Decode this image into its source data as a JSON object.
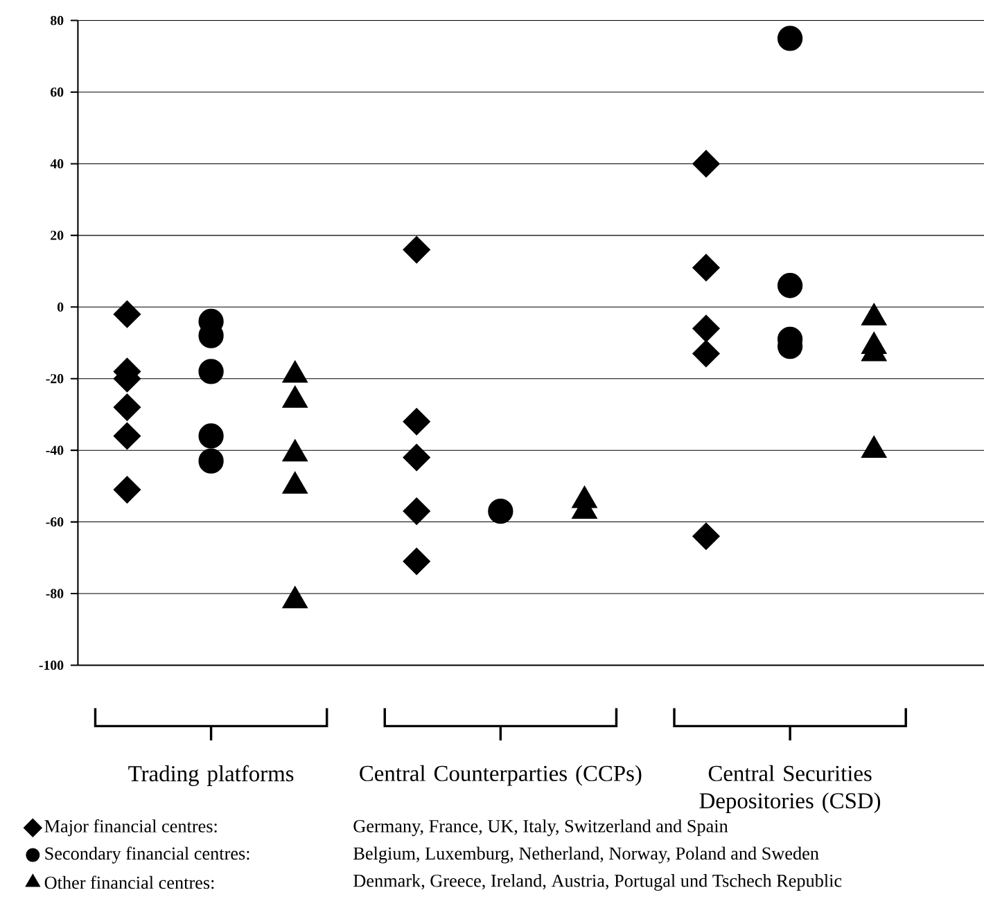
{
  "chart_data": {
    "type": "scatter",
    "categories": [
      "Trading platforms",
      "Central Counterparties (CCPs)",
      "Central Securities Depositories (CSD)"
    ],
    "series": [
      {
        "name": "Major financial centres:",
        "color": "#000000",
        "marker": "diamond",
        "x": [
          "Trading platforms",
          "Trading platforms",
          "Trading platforms",
          "Trading platforms",
          "Trading platforms",
          "Trading platforms",
          "Central Counterparties (CCPs)",
          "Central Counterparties (CCPs)",
          "Central Counterparties (CCPs)",
          "Central Counterparties (CCPs)",
          "Central Counterparties (CCPs)",
          "Central Securities Depositories (CSD)",
          "Central Securities Depositories (CSD)",
          "Central Securities Depositories (CSD)",
          "Central Securities Depositories (CSD)",
          "Central Securities Depositories (CSD)"
        ],
        "values": [
          -2,
          -18,
          -20,
          -28,
          -36,
          -51,
          16,
          -32,
          -42,
          -57,
          -71,
          40,
          11,
          -6,
          -13,
          -64
        ]
      },
      {
        "name": "Secondary financial centres:",
        "color": "#000000",
        "marker": "circle",
        "x": [
          "Trading platforms",
          "Trading platforms",
          "Trading platforms",
          "Trading platforms",
          "Trading platforms",
          "Central Counterparties (CCPs)",
          "Central Securities Depositories (CSD)",
          "Central Securities Depositories (CSD)",
          "Central Securities Depositories (CSD)",
          "Central Securities Depositories (CSD)"
        ],
        "values": [
          -4,
          -8,
          -18,
          -36,
          -43,
          -57,
          75,
          6,
          -9,
          -11
        ]
      },
      {
        "name": "Other financial centres:",
        "color": "#000000",
        "marker": "triangle",
        "x": [
          "Trading platforms",
          "Trading platforms",
          "Trading platforms",
          "Trading platforms",
          "Trading platforms",
          "Central Counterparties (CCPs)",
          "Central Counterparties (CCPs)",
          "Central Securities Depositories (CSD)",
          "Central Securities Depositories (CSD)",
          "Central Securities Depositories (CSD)",
          "Central Securities Depositories (CSD)"
        ],
        "values": [
          -19,
          -26,
          -41,
          -50,
          -82,
          -54,
          -57,
          -3,
          -11,
          -13,
          -40
        ]
      }
    ],
    "ylim": [
      -100,
      80
    ],
    "yticks": [
      -100,
      -80,
      -60,
      -40,
      -20,
      0,
      20,
      40,
      60,
      80
    ],
    "grid": "y",
    "legend": "bottom",
    "annotations": [
      "Germany, France, UK, Italy, Switzerland and Spain",
      "Belgium, Luxemburg, Netherland, Norway, Poland and Sweden",
      "Denmark, Greece, Ireland, Austria, Portugal und Tschech Republic"
    ]
  }
}
